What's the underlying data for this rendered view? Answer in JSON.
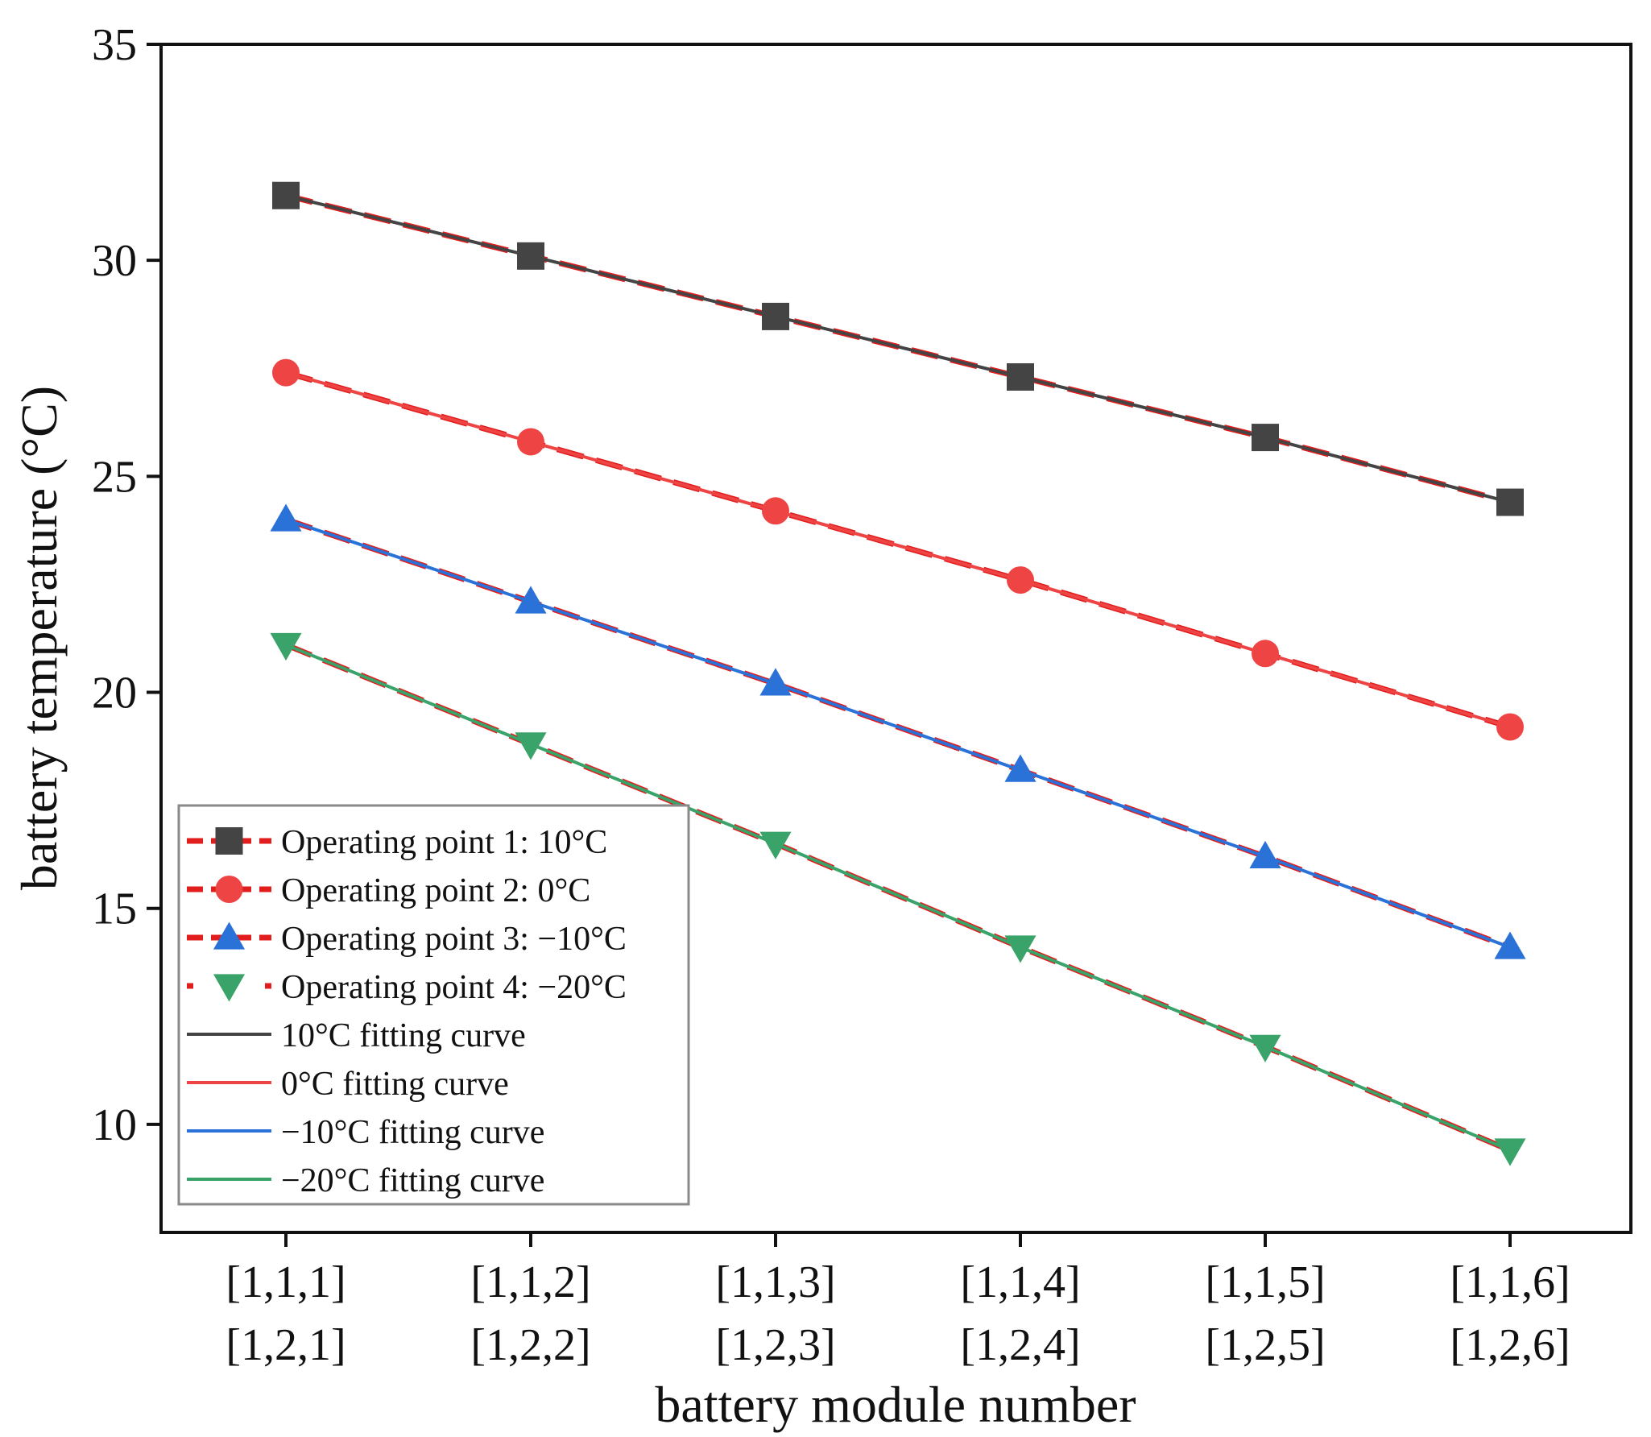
{
  "chart_data": {
    "type": "line",
    "xlabel": "battery module number",
    "ylabel": "battery temperature (°C)",
    "ylim": [
      7.5,
      35
    ],
    "yticks": [
      10,
      15,
      20,
      25,
      30,
      35
    ],
    "categories": [
      [
        "[1,1,1]",
        "[1,2,1]"
      ],
      [
        "[1,1,2]",
        "[1,2,2]"
      ],
      [
        "[1,1,3]",
        "[1,2,3]"
      ],
      [
        "[1,1,4]",
        "[1,2,4]"
      ],
      [
        "[1,1,5]",
        "[1,2,5]"
      ],
      [
        "[1,1,6]",
        "[1,2,6]"
      ]
    ],
    "legend_position": "bottom-left",
    "series": [
      {
        "name": "Operating point 1: 10°C",
        "kind": "points",
        "marker": "square",
        "color": "#444444",
        "values": [
          31.5,
          30.1,
          28.7,
          27.3,
          25.9,
          24.4
        ]
      },
      {
        "name": "Operating point 2: 0°C",
        "kind": "points",
        "marker": "circle",
        "color": "#ef4444",
        "values": [
          27.4,
          25.8,
          24.2,
          22.6,
          20.9,
          19.2
        ]
      },
      {
        "name": "Operating point 3: −10°C",
        "kind": "points",
        "marker": "triangle-up",
        "color": "#2b72d8",
        "values": [
          24.0,
          22.1,
          20.2,
          18.2,
          16.2,
          14.1
        ]
      },
      {
        "name": "Operating point 4: −20°C",
        "kind": "points",
        "marker": "triangle-down",
        "color": "#3aa36a",
        "values": [
          21.1,
          18.8,
          16.5,
          14.1,
          11.8,
          9.4
        ]
      },
      {
        "name": "10°C fitting curve",
        "kind": "fit",
        "color": "#444444",
        "values": [
          31.5,
          30.1,
          28.7,
          27.3,
          25.9,
          24.4
        ]
      },
      {
        "name": "0°C fitting curve",
        "kind": "fit",
        "color": "#ef4444",
        "values": [
          27.4,
          25.8,
          24.2,
          22.6,
          20.9,
          19.2
        ]
      },
      {
        "name": "−10°C fitting curve",
        "kind": "fit",
        "color": "#2b72d8",
        "values": [
          24.0,
          22.1,
          20.2,
          18.2,
          16.2,
          14.1
        ]
      },
      {
        "name": "−20°C fitting curve",
        "kind": "fit",
        "color": "#3aa36a",
        "values": [
          21.1,
          18.8,
          16.5,
          14.1,
          11.8,
          9.4
        ]
      }
    ],
    "dash_color": "#e11d1d"
  }
}
